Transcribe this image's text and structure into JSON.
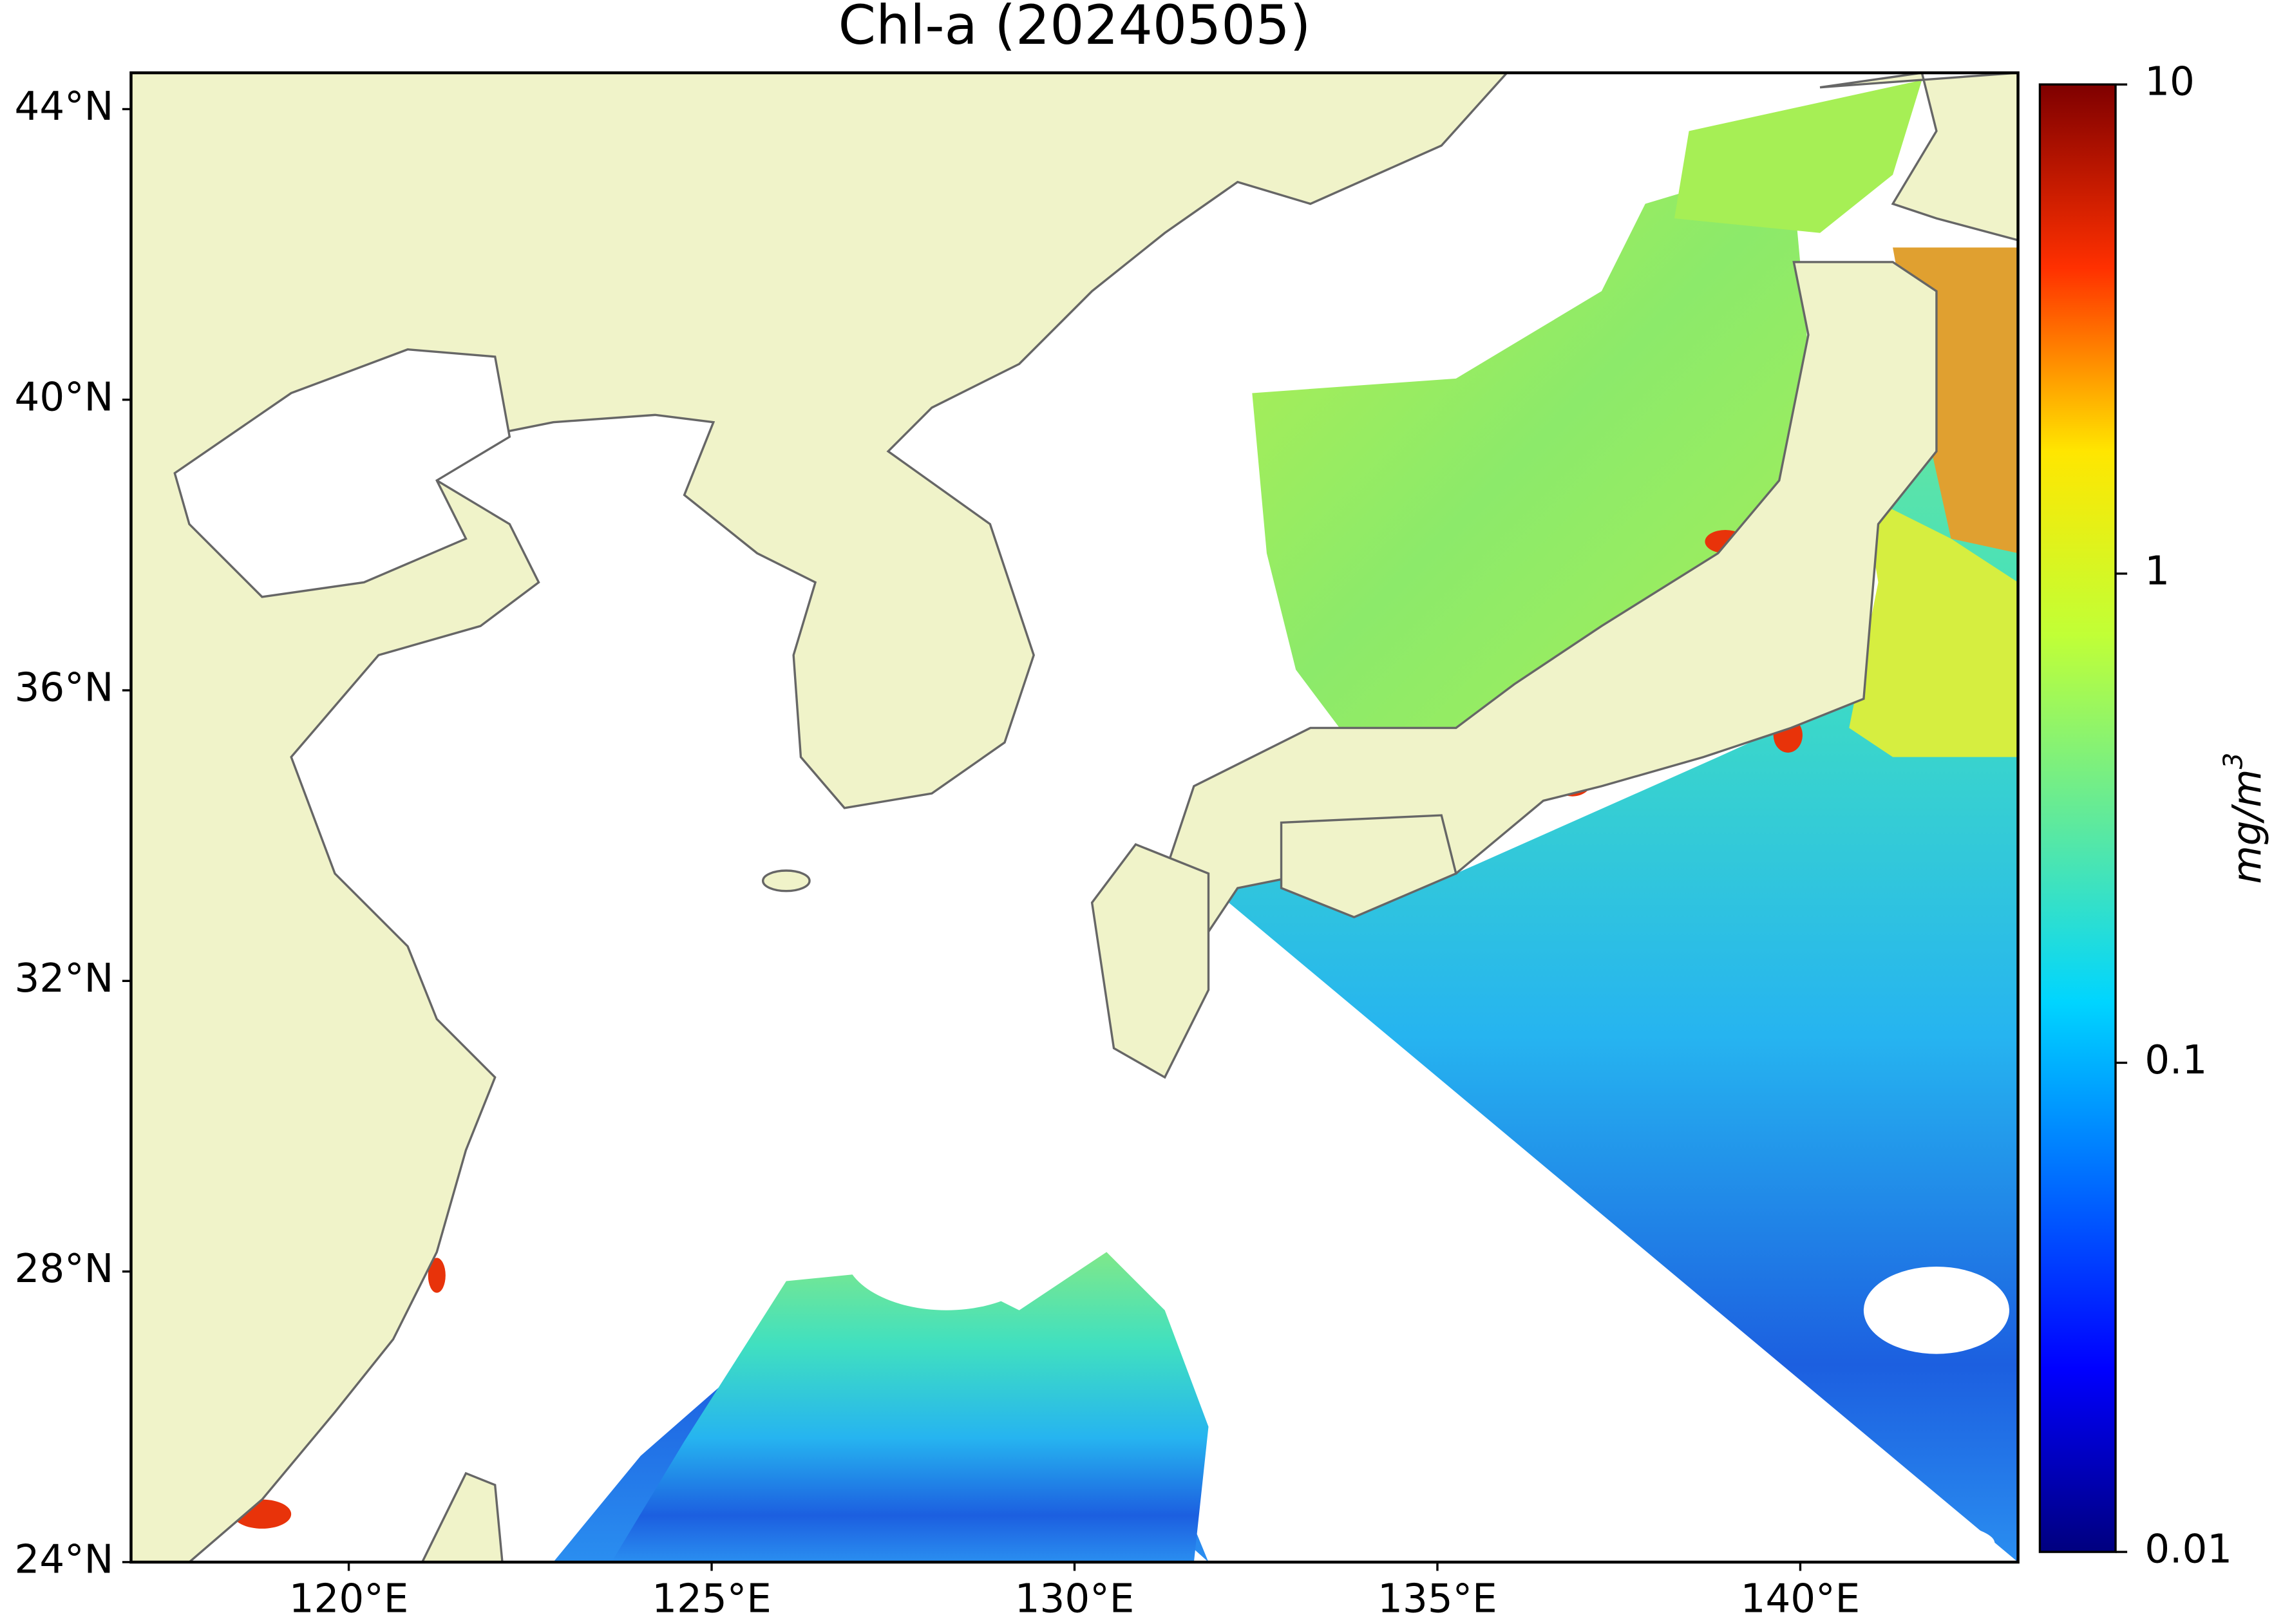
{
  "map": {
    "title": "Chl-a (20240505)",
    "xlim": [
      117,
      143
    ],
    "ylim": [
      24,
      44.5
    ],
    "lat_ticks": [
      {
        "value": 24,
        "label": "24°N"
      },
      {
        "value": 28,
        "label": "28°N"
      },
      {
        "value": 32,
        "label": "32°N"
      },
      {
        "value": 36,
        "label": "36°N"
      },
      {
        "value": 40,
        "label": "40°N"
      },
      {
        "value": 44,
        "label": "44°N"
      }
    ],
    "lon_ticks": [
      {
        "value": 120,
        "label": "120°E"
      },
      {
        "value": 125,
        "label": "125°E"
      },
      {
        "value": 130,
        "label": "130°E"
      },
      {
        "value": 135,
        "label": "135°E"
      },
      {
        "value": 140,
        "label": "140°E"
      }
    ],
    "colorbar": {
      "label": "mg/m",
      "label_exponent": "3",
      "scale": "log",
      "lim": [
        0.01,
        10
      ],
      "ticks": [
        10,
        1,
        0.1,
        0.01
      ]
    }
  }
}
